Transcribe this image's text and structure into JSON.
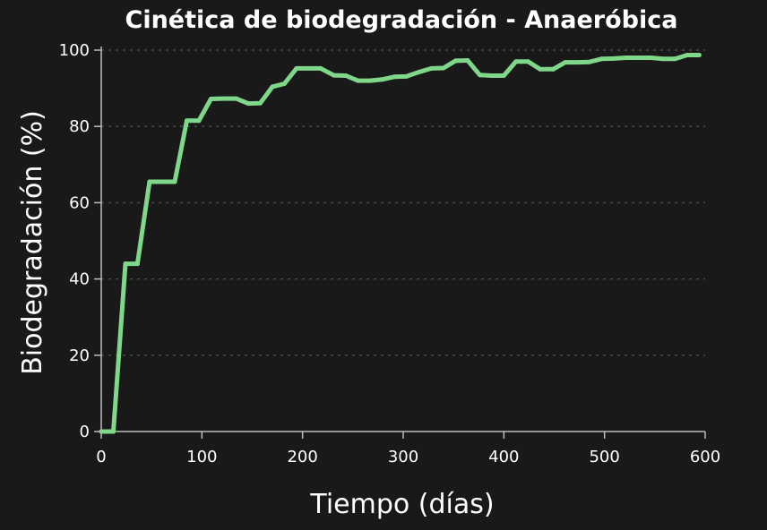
{
  "chart_data": {
    "type": "line",
    "title": "Cinética de biodegradación - Anaeróbica",
    "xlabel": "Tiempo (días)",
    "ylabel": "Biodegradación (%)",
    "xlim": [
      0,
      600
    ],
    "ylim": [
      0,
      100
    ],
    "xticks": [
      0,
      100,
      200,
      300,
      400,
      500,
      600
    ],
    "yticks": [
      0,
      20,
      40,
      60,
      80,
      100
    ],
    "grid": "horizontal-dashed",
    "series": [
      {
        "color": "#7fd88a",
        "x": [
          0,
          12,
          24,
          36,
          48,
          61,
          73,
          85,
          97,
          109,
          121,
          134,
          146,
          158,
          170,
          182,
          194,
          206,
          218,
          231,
          243,
          255,
          267,
          279,
          291,
          303,
          315,
          328,
          340,
          352,
          364,
          376,
          388,
          400,
          412,
          424,
          436,
          449,
          461,
          473,
          485,
          497,
          509,
          521,
          533,
          546,
          558,
          570,
          582,
          594
        ],
        "y": [
          0,
          0,
          44,
          44,
          65.5,
          65.5,
          65.5,
          81.5,
          81.5,
          87.2,
          87.3,
          87.3,
          86,
          86.1,
          90.4,
          91.2,
          95.2,
          95.2,
          95.2,
          93.4,
          93.3,
          92,
          92,
          92.3,
          93,
          93.1,
          94.2,
          95.2,
          95.3,
          97.2,
          97.3,
          93.5,
          93.3,
          93.3,
          97,
          97,
          95,
          95,
          96.8,
          96.8,
          96.9,
          97.7,
          97.8,
          98,
          98,
          98,
          97.7,
          97.7,
          98.7,
          98.7
        ]
      }
    ]
  }
}
